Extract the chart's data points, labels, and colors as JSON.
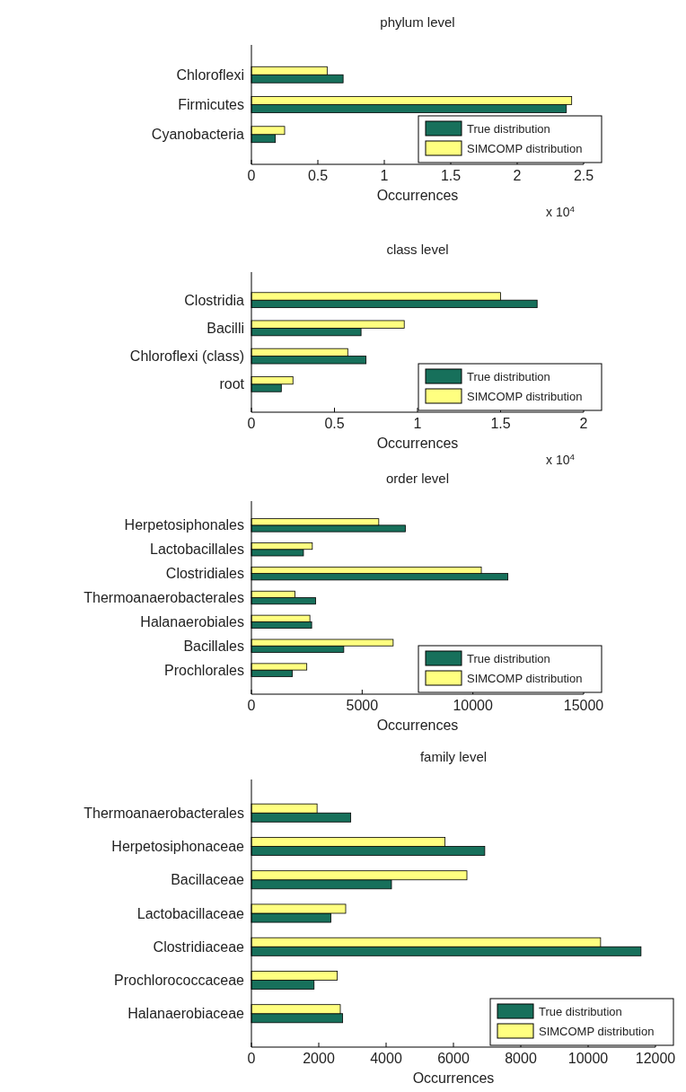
{
  "chart_data": [
    {
      "type": "bar",
      "orientation": "horizontal",
      "title": "phylum level",
      "xlabel": "Occurrences",
      "categories": [
        "Chloroflexi",
        "Firmicutes",
        "Cyanobacteria"
      ],
      "series": [
        {
          "name": "True distribution",
          "color": "#17705b",
          "values": [
            0.69,
            2.37,
            0.18
          ]
        },
        {
          "name": "SIMCOMP distribution",
          "color": "#ffff80",
          "values": [
            0.57,
            2.41,
            0.25
          ]
        }
      ],
      "xlim": [
        0,
        2.5
      ],
      "xticks": [
        0,
        0.5,
        1,
        1.5,
        2,
        2.5
      ],
      "legend": "bottom right",
      "annotations": [
        "x 10$^{4}$"
      ]
    },
    {
      "type": "bar",
      "orientation": "horizontal",
      "title": "class level",
      "xlabel": "Occurrences",
      "categories": [
        "Clostridia",
        "Bacilli",
        "Chloroflexi (class)",
        "root"
      ],
      "series": [
        {
          "name": "True distribution",
          "color": "#17705b",
          "values": [
            1.72,
            0.66,
            0.69,
            0.18
          ]
        },
        {
          "name": "SIMCOMP distribution",
          "color": "#ffff80",
          "values": [
            1.5,
            0.92,
            0.58,
            0.25
          ]
        }
      ],
      "xlim": [
        0,
        2
      ],
      "xticks": [
        0,
        0.5,
        1,
        1.5,
        2
      ],
      "legend": "bottom right",
      "annotations": [
        "x 10$^{4}$"
      ]
    },
    {
      "type": "bar",
      "orientation": "horizontal",
      "title": "order level",
      "xlabel": "Occurrences",
      "categories": [
        "Herpetosiphonales",
        "Lactobacillales",
        "Clostridiales",
        "Thermoanaerobacterales",
        "Halanaerobiales",
        "Bacillales",
        "Prochlorales"
      ],
      "series": [
        {
          "name": "True distribution",
          "color": "#17705b",
          "values": [
            6950,
            2350,
            11580,
            2900,
            2720,
            4170,
            1850
          ]
        },
        {
          "name": "SIMCOMP distribution",
          "color": "#ffff80",
          "values": [
            5750,
            2750,
            10380,
            1970,
            2640,
            6400,
            2500
          ]
        }
      ],
      "xlim": [
        0,
        15000
      ],
      "xticks": [
        0,
        5000,
        10000,
        15000
      ],
      "legend": "bottom right"
    },
    {
      "type": "bar",
      "orientation": "horizontal",
      "title": "family level",
      "xlabel": "Occurrences",
      "categories": [
        "Thermoanaerobacterales",
        "Herpetosiphonaceae",
        "Bacillaceae",
        "Lactobacillaceae",
        "Clostridiaceae",
        "Prochlorococcaceae",
        "Halanaerobiaceae"
      ],
      "series": [
        {
          "name": "True distribution",
          "color": "#17705b",
          "values": [
            2950,
            6930,
            4160,
            2360,
            11570,
            1860,
            2710
          ]
        },
        {
          "name": "SIMCOMP distribution",
          "color": "#ffff80",
          "values": [
            1950,
            5750,
            6400,
            2800,
            10370,
            2550,
            2640
          ]
        }
      ],
      "xlim": [
        0,
        12000
      ],
      "xticks": [
        0,
        2000,
        4000,
        6000,
        8000,
        10000,
        12000
      ],
      "legend": "bottom right"
    }
  ]
}
